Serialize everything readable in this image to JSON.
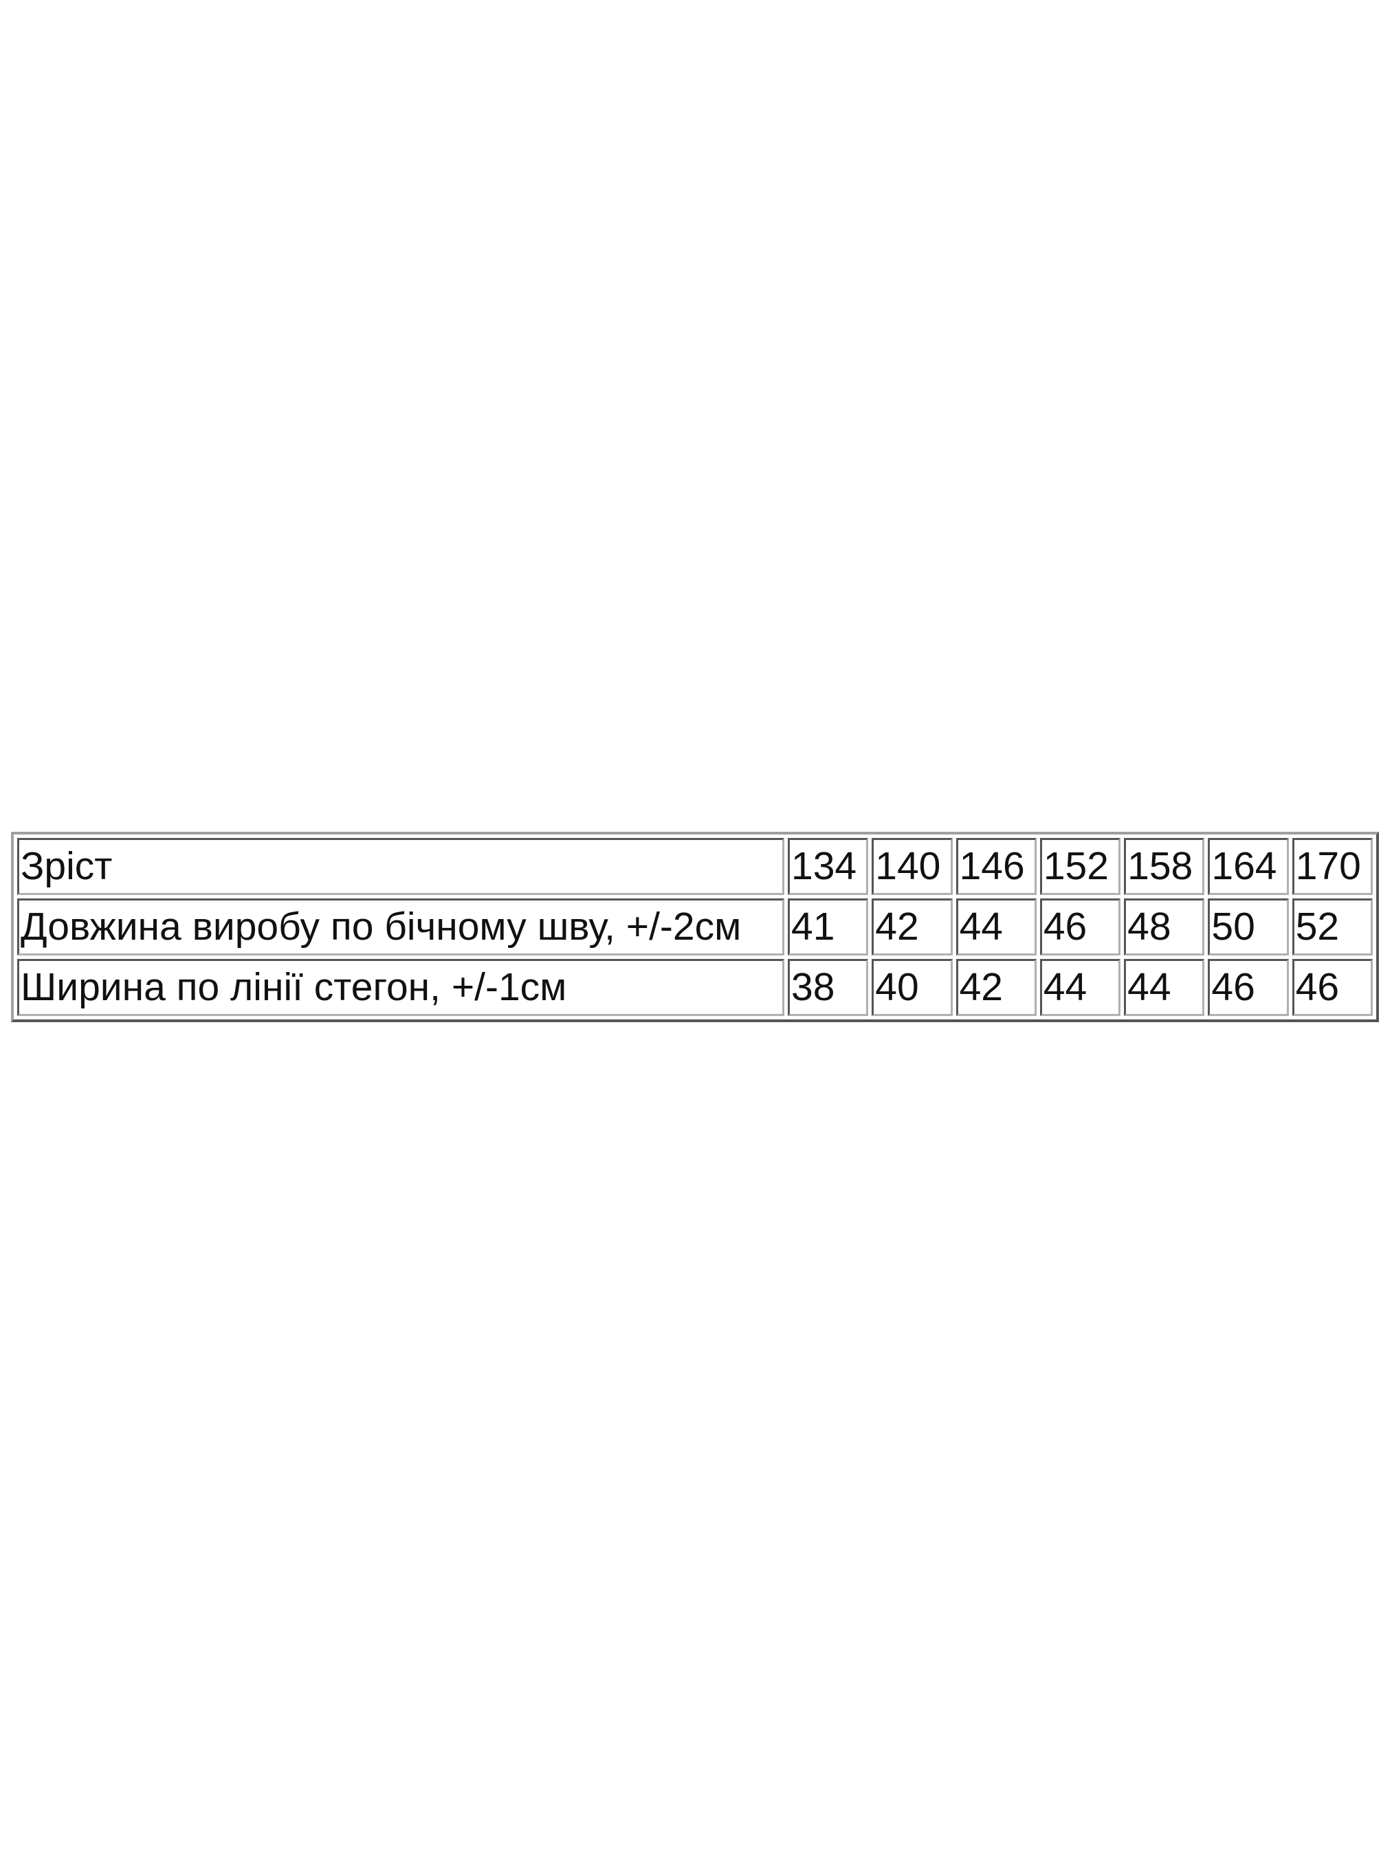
{
  "size_table": {
    "rows": [
      {
        "label": "Зріст",
        "values": [
          "134",
          "140",
          "146",
          "152",
          "158",
          "164",
          "170"
        ]
      },
      {
        "label": "Довжина виробу по бічному шву, +/-2см",
        "values": [
          "41",
          "42",
          "44",
          "46",
          "48",
          "50",
          "52"
        ]
      },
      {
        "label": "Ширина по лінії стегон, +/-1см",
        "values": [
          "38",
          "40",
          "42",
          "44",
          "44",
          "46",
          "46"
        ]
      }
    ]
  }
}
